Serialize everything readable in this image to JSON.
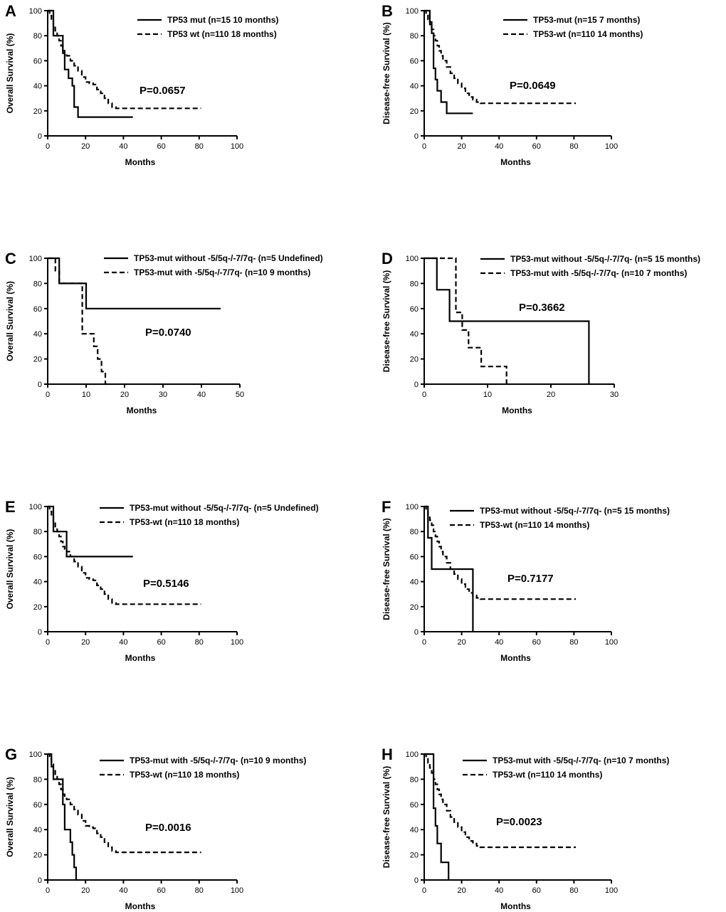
{
  "chart_data": [
    {
      "type": "line",
      "panel_label": "A",
      "xlabel": "Months",
      "ylabel": "Overall Survival (%)",
      "xlim": [
        0,
        100
      ],
      "ylim": [
        0,
        100
      ],
      "x_ticks": [
        0,
        20,
        40,
        60,
        80,
        100
      ],
      "y_ticks": [
        0,
        20,
        40,
        60,
        80,
        100
      ],
      "p_value_text": "P=0.0657",
      "series": [
        {
          "name": "TP53 mut (n=15 10 months)",
          "style": "solid",
          "x": [
            0,
            2,
            3,
            6,
            8,
            9,
            11,
            13,
            14,
            16,
            45
          ],
          "y": [
            100,
            100,
            80,
            80,
            66,
            53,
            46,
            40,
            23,
            15,
            15
          ]
        },
        {
          "name": "TP53 wt (n=110 18 months)",
          "style": "dashed",
          "x": [
            0,
            1,
            2,
            3,
            4,
            5,
            6,
            7,
            8,
            9,
            10,
            12,
            14,
            16,
            18,
            20,
            22,
            24,
            26,
            28,
            30,
            32,
            34,
            36,
            81
          ],
          "y": [
            100,
            96,
            92,
            88,
            84,
            80,
            76,
            72,
            68,
            66,
            64,
            60,
            56,
            52,
            47,
            43,
            42,
            41,
            37,
            34,
            30,
            26,
            23,
            22,
            22
          ]
        }
      ]
    },
    {
      "type": "line",
      "panel_label": "B",
      "xlabel": "Months",
      "ylabel": "Disease-free Survival (%)",
      "xlim": [
        0,
        100
      ],
      "ylim": [
        0,
        100
      ],
      "x_ticks": [
        0,
        20,
        40,
        60,
        80,
        100
      ],
      "y_ticks": [
        0,
        20,
        40,
        60,
        80,
        100
      ],
      "p_value_text": "P=0.0649",
      "series": [
        {
          "name": "TP53-mut (n=15 7 months)",
          "style": "solid",
          "x": [
            0,
            2,
            3,
            4,
            5,
            6,
            7,
            9,
            12,
            26
          ],
          "y": [
            100,
            100,
            91,
            82,
            54,
            45,
            36,
            27,
            18,
            18
          ]
        },
        {
          "name": "TP53-wt (n=110 14 months)",
          "style": "dashed",
          "x": [
            0,
            1,
            2,
            3,
            4,
            5,
            6,
            7,
            8,
            9,
            10,
            12,
            14,
            16,
            18,
            20,
            22,
            24,
            26,
            28,
            30,
            81
          ],
          "y": [
            100,
            97,
            93,
            89,
            85,
            80,
            76,
            72,
            68,
            64,
            60,
            55,
            50,
            46,
            42,
            38,
            34,
            31,
            29,
            27,
            26,
            26
          ]
        }
      ]
    },
    {
      "type": "line",
      "panel_label": "C",
      "xlabel": "Months",
      "ylabel": "Overall Survival (%)",
      "xlim": [
        0,
        50
      ],
      "ylim": [
        0,
        100
      ],
      "x_ticks": [
        0,
        10,
        20,
        30,
        40,
        50
      ],
      "y_ticks": [
        0,
        20,
        40,
        60,
        80,
        100
      ],
      "p_value_text": "P=0.0740",
      "series": [
        {
          "name": "TP53-mut without -5/5q-/-7/7q- (n=5 Undefined)",
          "style": "solid",
          "x": [
            0,
            3,
            10,
            45
          ],
          "y": [
            100,
            80,
            60,
            60
          ]
        },
        {
          "name": "TP53-mut with -5/5q-/-7/7q- (n=10 9 months)",
          "style": "dashed",
          "x": [
            0,
            2,
            3,
            9,
            12,
            13,
            14,
            15,
            16
          ],
          "y": [
            100,
            90,
            80,
            40,
            30,
            20,
            10,
            0,
            0
          ]
        }
      ]
    },
    {
      "type": "line",
      "panel_label": "D",
      "xlabel": "Months",
      "ylabel": "Disease-free Survival (%)",
      "xlim": [
        0,
        30
      ],
      "ylim": [
        0,
        100
      ],
      "x_ticks": [
        0,
        10,
        20,
        30
      ],
      "y_ticks": [
        0,
        20,
        40,
        60,
        80,
        100
      ],
      "p_value_text": "P=0.3662",
      "series": [
        {
          "name": "TP53-mut without -5/5q-/-7/7q- (n=5 15 months)",
          "style": "solid",
          "x": [
            0,
            2,
            4,
            26,
            26
          ],
          "y": [
            100,
            75,
            50,
            0,
            0
          ]
        },
        {
          "name": "TP53-mut with -5/5q-/-7/7q- (n=10 7 months)",
          "style": "dashed",
          "x": [
            0,
            5,
            6,
            7,
            9,
            13,
            13
          ],
          "y": [
            100,
            57,
            43,
            29,
            14,
            0,
            0
          ]
        }
      ]
    },
    {
      "type": "line",
      "panel_label": "E",
      "xlabel": "Months",
      "ylabel": "Overall Survival (%)",
      "xlim": [
        0,
        100
      ],
      "ylim": [
        0,
        100
      ],
      "x_ticks": [
        0,
        20,
        40,
        60,
        80,
        100
      ],
      "y_ticks": [
        0,
        20,
        40,
        60,
        80,
        100
      ],
      "p_value_text": "P=0.5146",
      "series": [
        {
          "name": "TP53-mut without -5/5q-/-7/7q- (n=5 Undefined)",
          "style": "solid",
          "x": [
            0,
            3,
            10,
            45
          ],
          "y": [
            100,
            80,
            60,
            60
          ]
        },
        {
          "name": "TP53-wt (n=110 18 months)",
          "style": "dashed",
          "x": [
            0,
            1,
            2,
            3,
            4,
            5,
            6,
            7,
            8,
            9,
            10,
            12,
            14,
            16,
            18,
            20,
            22,
            24,
            26,
            28,
            30,
            32,
            34,
            36,
            81
          ],
          "y": [
            100,
            96,
            92,
            88,
            84,
            80,
            76,
            72,
            68,
            66,
            64,
            60,
            56,
            52,
            47,
            43,
            42,
            41,
            37,
            34,
            30,
            26,
            23,
            22,
            22
          ]
        }
      ]
    },
    {
      "type": "line",
      "panel_label": "F",
      "xlabel": "Months",
      "ylabel": "Disease-free Survival (%)",
      "xlim": [
        0,
        100
      ],
      "ylim": [
        0,
        100
      ],
      "x_ticks": [
        0,
        20,
        40,
        60,
        80,
        100
      ],
      "y_ticks": [
        0,
        20,
        40,
        60,
        80,
        100
      ],
      "p_value_text": "P=0.7177",
      "series": [
        {
          "name": "TP53-mut without -5/5q-/-7/7q- (n=5 15 months)",
          "style": "solid",
          "x": [
            0,
            2,
            4,
            26,
            26
          ],
          "y": [
            100,
            75,
            50,
            0,
            0
          ]
        },
        {
          "name": "TP53-wt (n=110 14 months)",
          "style": "dashed",
          "x": [
            0,
            1,
            2,
            3,
            4,
            5,
            6,
            7,
            8,
            9,
            10,
            12,
            14,
            16,
            18,
            20,
            22,
            24,
            26,
            28,
            30,
            81
          ],
          "y": [
            100,
            97,
            93,
            89,
            85,
            80,
            76,
            72,
            68,
            64,
            60,
            55,
            50,
            46,
            42,
            38,
            34,
            31,
            29,
            27,
            26,
            26
          ]
        }
      ]
    },
    {
      "type": "line",
      "panel_label": "G",
      "xlabel": "Months",
      "ylabel": "Overall Survival (%)",
      "xlim": [
        0,
        100
      ],
      "ylim": [
        0,
        100
      ],
      "x_ticks": [
        0,
        20,
        40,
        60,
        80,
        100
      ],
      "y_ticks": [
        0,
        20,
        40,
        60,
        80,
        100
      ],
      "p_value_text": "P=0.0016",
      "series": [
        {
          "name": "TP53-mut with -5/5q-/-7/7q- (n=10 9 months)",
          "style": "solid",
          "x": [
            0,
            2,
            3,
            8,
            9,
            12,
            13,
            14,
            15,
            16
          ],
          "y": [
            100,
            90,
            80,
            60,
            40,
            30,
            20,
            10,
            0,
            0
          ]
        },
        {
          "name": "TP53-wt (n=110 18 months)",
          "style": "dashed",
          "x": [
            0,
            1,
            2,
            3,
            4,
            5,
            6,
            7,
            8,
            9,
            10,
            12,
            14,
            16,
            18,
            20,
            22,
            24,
            26,
            28,
            30,
            32,
            34,
            36,
            81
          ],
          "y": [
            100,
            96,
            92,
            88,
            84,
            80,
            76,
            72,
            68,
            66,
            64,
            60,
            56,
            52,
            47,
            43,
            42,
            41,
            37,
            34,
            30,
            26,
            23,
            22,
            22
          ]
        }
      ]
    },
    {
      "type": "line",
      "panel_label": "H",
      "xlabel": "Months",
      "ylabel": "Disease-free Survival (%)",
      "xlim": [
        0,
        100
      ],
      "ylim": [
        0,
        100
      ],
      "x_ticks": [
        0,
        20,
        40,
        60,
        80,
        100
      ],
      "y_ticks": [
        0,
        20,
        40,
        60,
        80,
        100
      ],
      "p_value_text": "P=0.0023",
      "series": [
        {
          "name": "TP53-mut with -5/5q-/-7/7q- (n=10 7 months)",
          "style": "solid",
          "x": [
            0,
            5,
            6,
            7,
            9,
            13,
            13
          ],
          "y": [
            100,
            57,
            43,
            29,
            14,
            0,
            0
          ]
        },
        {
          "name": "TP53-wt (n=110 14 months)",
          "style": "dashed",
          "x": [
            0,
            1,
            2,
            3,
            4,
            5,
            6,
            7,
            8,
            9,
            10,
            12,
            14,
            16,
            18,
            20,
            22,
            24,
            26,
            28,
            30,
            81
          ],
          "y": [
            100,
            97,
            93,
            89,
            85,
            80,
            76,
            72,
            68,
            64,
            60,
            55,
            50,
            46,
            42,
            38,
            34,
            31,
            29,
            27,
            26,
            26
          ]
        }
      ]
    }
  ]
}
